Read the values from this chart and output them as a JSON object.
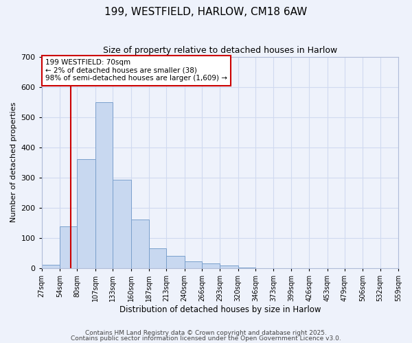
{
  "title": "199, WESTFIELD, HARLOW, CM18 6AW",
  "subtitle": "Size of property relative to detached houses in Harlow",
  "xlabel": "Distribution of detached houses by size in Harlow",
  "ylabel": "Number of detached properties",
  "bar_color": "#c8d8f0",
  "bar_edge_color": "#7aa0cc",
  "background_color": "#eef2fb",
  "grid_color": "#d0daf0",
  "annotation_box_color": "#ffffff",
  "annotation_box_edge": "#cc0000",
  "vline_color": "#cc0000",
  "vline_x": 70,
  "annotation_title": "199 WESTFIELD: 70sqm",
  "annotation_line1": "← 2% of detached houses are smaller (38)",
  "annotation_line2": "98% of semi-detached houses are larger (1,609) →",
  "bin_edges": [
    27,
    54,
    80,
    107,
    133,
    160,
    187,
    213,
    240,
    266,
    293,
    320,
    346,
    373,
    399,
    426,
    453,
    479,
    506,
    532,
    559
  ],
  "bar_heights": [
    10,
    138,
    362,
    550,
    293,
    160,
    65,
    40,
    22,
    14,
    8,
    2,
    0,
    0,
    0,
    0,
    0,
    0,
    0,
    0
  ],
  "ylim": [
    0,
    700
  ],
  "yticks": [
    0,
    100,
    200,
    300,
    400,
    500,
    600,
    700
  ],
  "footer1": "Contains HM Land Registry data © Crown copyright and database right 2025.",
  "footer2": "Contains public sector information licensed under the Open Government Licence v3.0."
}
